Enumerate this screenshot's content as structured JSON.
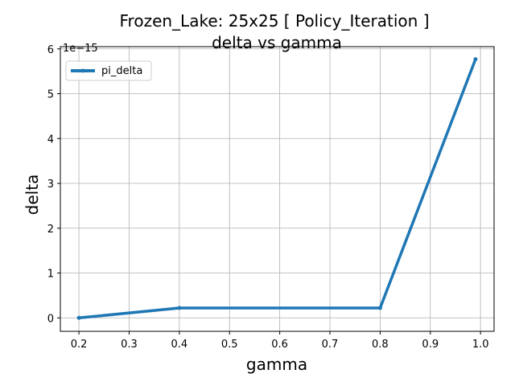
{
  "chart_data": {
    "type": "line",
    "title_line1": "Frozen_Lake: 25x25 [ Policy_Iteration ]",
    "title_line2": "delta vs gamma",
    "xlabel": "gamma",
    "ylabel": "delta",
    "y_offset_label": "1e−15",
    "xlim": [
      0.163,
      1.027
    ],
    "ylim": [
      -0.3,
      6.05
    ],
    "xticks": [
      0.2,
      0.3,
      0.4,
      0.5,
      0.6,
      0.7,
      0.8,
      0.9,
      1.0
    ],
    "xtick_labels": [
      "0.2",
      "0.3",
      "0.4",
      "0.5",
      "0.6",
      "0.7",
      "0.8",
      "0.9",
      "1.0"
    ],
    "yticks": [
      0,
      1,
      2,
      3,
      4,
      5,
      6
    ],
    "ytick_labels": [
      "0",
      "1",
      "2",
      "3",
      "4",
      "5",
      "6"
    ],
    "grid": true,
    "legend_position": "upper-left",
    "series": [
      {
        "name": "pi_delta",
        "color": "#1f77b4",
        "x": [
          0.2,
          0.4,
          0.8,
          0.99
        ],
        "y": [
          0.0,
          0.22,
          0.22,
          5.77
        ]
      }
    ]
  }
}
